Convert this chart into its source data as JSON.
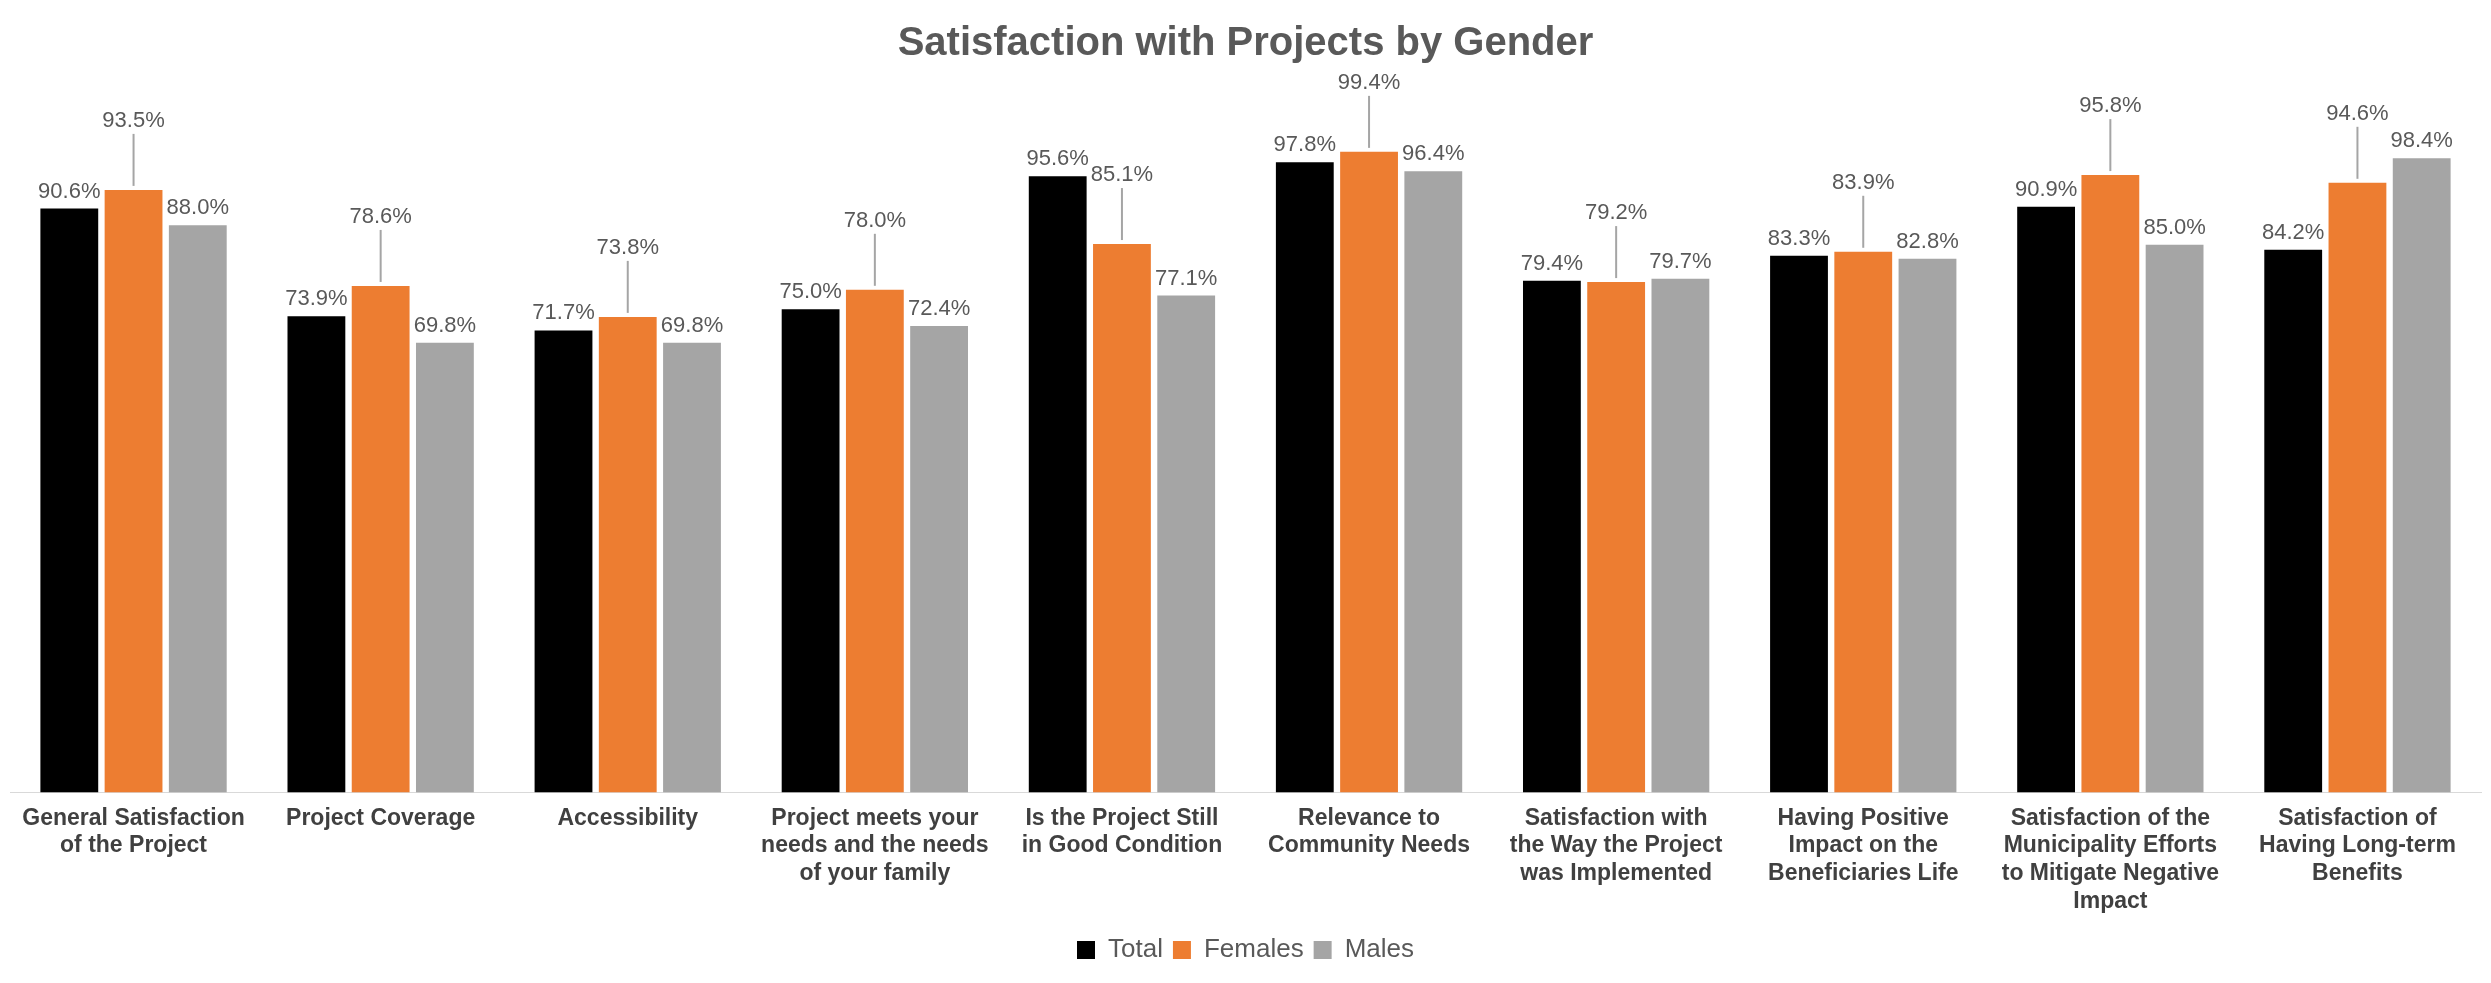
{
  "chart_data": {
    "type": "bar",
    "title": "Satisfaction with Projects by Gender",
    "categories": [
      "General Satisfaction of the Project",
      "Project Coverage",
      "Accessibility",
      "Project meets your needs and the needs of your family",
      "Is the Project Still in Good Condition",
      "Relevance to Community Needs",
      "Satisfaction with the Way the Project was Implemented",
      "Having Positive Impact on the Beneficiaries Life",
      "Satisfaction of the Municipality Efforts to Mitigate Negative Impact",
      "Satisfaction of Having Long-term Benefits"
    ],
    "series": [
      {
        "name": "Total",
        "color": "#000000",
        "values": [
          90.6,
          73.9,
          71.7,
          75.0,
          95.6,
          97.8,
          79.4,
          83.3,
          90.9,
          84.2
        ],
        "value_labels": [
          "90.6%",
          "73.9%",
          "71.7%",
          "75.0%",
          "95.6%",
          "97.8%",
          "79.4%",
          "83.3%",
          "90.9%",
          "84.2%"
        ]
      },
      {
        "name": "Females",
        "color": "#ed7d31",
        "values": [
          93.5,
          78.6,
          73.8,
          78.0,
          85.1,
          99.4,
          79.2,
          83.9,
          95.8,
          94.6
        ],
        "value_labels": [
          "93.5%",
          "78.6%",
          "73.8%",
          "78.0%",
          "85.1%",
          "99.4%",
          "79.2%",
          "83.9%",
          "95.8%",
          "94.6%"
        ]
      },
      {
        "name": "Males",
        "color": "#a5a5a5",
        "values": [
          88.0,
          69.8,
          69.8,
          72.4,
          77.1,
          96.4,
          79.7,
          82.8,
          85.0,
          98.4
        ],
        "value_labels": [
          "88.0%",
          "69.8%",
          "69.8%",
          "72.4%",
          "77.1%",
          "96.4%",
          "79.7%",
          "82.8%",
          "85.0%",
          "98.4%"
        ]
      }
    ],
    "legend": "bottom",
    "grid": false,
    "tick_labels": "x"
  }
}
